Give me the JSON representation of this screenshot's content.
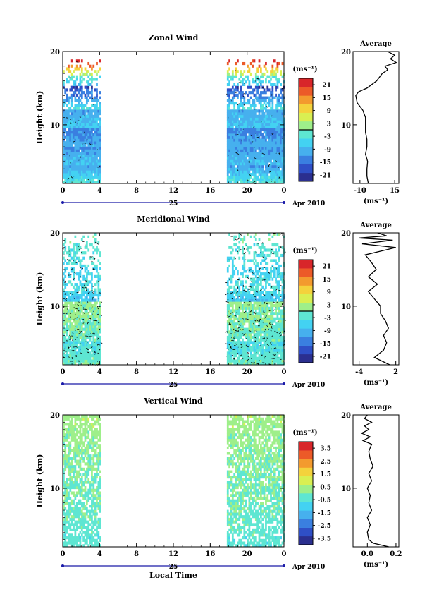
{
  "colors": {
    "colormap": [
      "#2b2f8f",
      "#2f4fc6",
      "#3a7fe0",
      "#46b0ee",
      "#43d2f2",
      "#5ee6d2",
      "#9eef8a",
      "#d9ef52",
      "#f4d23c",
      "#f39a2e",
      "#ec5a28",
      "#d8262a"
    ],
    "axis": "#000000",
    "tick_marks": "#1a1aa8"
  },
  "chart_data": [
    {
      "id": "zonal",
      "type": "heatmap",
      "title": "Zonal Wind",
      "ylabel": "Height (km)",
      "xlabel": "",
      "x_ticks": [
        "0",
        "4",
        "8",
        "12",
        "16",
        "20",
        "0"
      ],
      "x_range_hours": [
        0,
        24
      ],
      "y_ticks": [
        "20",
        "10"
      ],
      "y_range_km": [
        2,
        20
      ],
      "day_label": "25",
      "date_label": "Apr 2010",
      "colorbar": {
        "unit": "(ms⁻¹)",
        "labels": [
          "21",
          "15",
          "9",
          "3",
          "-3",
          "-9",
          "-15",
          "-21"
        ],
        "range": [
          -24,
          24
        ],
        "zero_line": true
      },
      "data_coverage_hours": [
        [
          0,
          4
        ],
        [
          17.8,
          24
        ]
      ],
      "contour_density": 0.05,
      "bands": [
        {
          "z0": 2.0,
          "z1": 4.5,
          "v": [
            -3,
            -12
          ],
          "f": 0.96
        },
        {
          "z0": 4.5,
          "z1": 7.0,
          "v": [
            -8,
            -12
          ],
          "f": 0.97
        },
        {
          "z0": 7.0,
          "z1": 9.5,
          "v": [
            -10,
            -14
          ],
          "f": 0.97
        },
        {
          "z0": 9.5,
          "z1": 12.0,
          "v": [
            -7,
            -11
          ],
          "f": 0.97
        },
        {
          "z0": 12.0,
          "z1": 14.0,
          "v": [
            -3,
            -16
          ],
          "f": 0.6
        },
        {
          "z0": 14.0,
          "z1": 15.0,
          "v": [
            -12,
            -20
          ],
          "f": 0.5
        },
        {
          "z0": 15.0,
          "z1": 16.5,
          "v": [
            -8,
            -2
          ],
          "f": 0.4
        },
        {
          "z0": 16.5,
          "z1": 17.6,
          "v": [
            2,
            12
          ],
          "f": 0.3
        },
        {
          "z0": 17.6,
          "z1": 18.6,
          "v": [
            15,
            22
          ],
          "f": 0.25
        }
      ],
      "profile": {
        "xticks": [
          "-10",
          "15"
        ],
        "xlim": [
          -15,
          18
        ],
        "heights": [
          2,
          3,
          4,
          5,
          6,
          7,
          8,
          9,
          10,
          11,
          12,
          13,
          14,
          14.5,
          15,
          16,
          17,
          17.5,
          18,
          18.5,
          19,
          19.5,
          20
        ],
        "values": [
          -4,
          -5,
          -5,
          -4.5,
          -6,
          -5,
          -5,
          -6,
          -6,
          -6,
          -8,
          -12,
          -13,
          -11,
          -5,
          2,
          6,
          10,
          8,
          16,
          12,
          15,
          10
        ]
      }
    },
    {
      "id": "meridional",
      "type": "heatmap",
      "title": "Meridional Wind",
      "ylabel": "Height (km)",
      "xlabel": "",
      "x_ticks": [
        "0",
        "4",
        "8",
        "12",
        "16",
        "20",
        "0"
      ],
      "x_range_hours": [
        0,
        24
      ],
      "y_ticks": [
        "20",
        "10"
      ],
      "y_range_km": [
        2,
        20
      ],
      "day_label": "25",
      "date_label": "Apr 2010",
      "colorbar": {
        "unit": "(ms⁻¹)",
        "labels": [
          "21",
          "15",
          "9",
          "3",
          "-3",
          "-9",
          "-15",
          "-21"
        ],
        "range": [
          -24,
          24
        ],
        "zero_line": true
      },
      "data_coverage_hours": [
        [
          0,
          4
        ],
        [
          17.8,
          24
        ]
      ],
      "contour_density": 0.22,
      "bands": [
        {
          "z0": 2.0,
          "z1": 5.0,
          "v": [
            -1,
            -4
          ],
          "f": 0.92
        },
        {
          "z0": 5.0,
          "z1": 9.0,
          "v": [
            -2,
            1
          ],
          "f": 0.9
        },
        {
          "z0": 9.0,
          "z1": 10.5,
          "v": [
            0,
            2
          ],
          "f": 0.85
        },
        {
          "z0": 10.5,
          "z1": 12.0,
          "v": [
            -8,
            -4
          ],
          "f": 0.85
        },
        {
          "z0": 12.0,
          "z1": 15.0,
          "v": [
            -3,
            -6
          ],
          "f": 0.45
        },
        {
          "z0": 15.0,
          "z1": 18.5,
          "v": [
            -4,
            -2
          ],
          "f": 0.35
        },
        {
          "z0": 18.5,
          "z1": 20.0,
          "v": [
            -2,
            0
          ],
          "f": 0.15
        }
      ],
      "profile": {
        "xticks": [
          "-4",
          "2"
        ],
        "xlim": [
          -5,
          2.5
        ],
        "heights": [
          2,
          3,
          4,
          5,
          6,
          7,
          8,
          9,
          10,
          11,
          12,
          13,
          14,
          15,
          16,
          17,
          17.5,
          18,
          18.5,
          19,
          19.3,
          19.6,
          20
        ],
        "values": [
          1,
          -1.5,
          0,
          0.5,
          0,
          0.8,
          0.3,
          -0.5,
          -0.5,
          -1.5,
          -2.5,
          -1,
          -2.5,
          -1.2,
          -2,
          -3,
          -0.5,
          2.0,
          -3.5,
          1.5,
          -4.0,
          0.5,
          -1.0
        ]
      }
    },
    {
      "id": "vertical",
      "type": "heatmap",
      "title": "Vertical Wind",
      "ylabel": "Height (km)",
      "xlabel": "Local Time",
      "x_ticks": [
        "0",
        "4",
        "8",
        "12",
        "16",
        "20",
        "0"
      ],
      "x_range_hours": [
        0,
        24
      ],
      "y_ticks": [
        "20",
        "10"
      ],
      "y_range_km": [
        2,
        20
      ],
      "day_label": "25",
      "date_label": "Apr 2010",
      "colorbar": {
        "unit": "(ms⁻¹)",
        "labels": [
          "3.5",
          "2.5",
          "1.5",
          "0.5",
          "-0.5",
          "-1.5",
          "-2.5",
          "-3.5"
        ],
        "range": [
          -4,
          4
        ],
        "zero_line": false
      },
      "data_coverage_hours": [
        [
          0,
          4
        ],
        [
          17.8,
          24
        ]
      ],
      "contour_density": 0,
      "bands": [
        {
          "z0": 2.0,
          "z1": 20.0,
          "v": [
            -0.4,
            0.4
          ],
          "f": 0.72
        }
      ],
      "profile": {
        "xticks": [
          "0.0",
          "0.2"
        ],
        "xlim": [
          -0.1,
          0.22
        ],
        "heights": [
          2,
          2.5,
          3,
          4,
          5,
          6,
          7,
          8,
          9,
          10,
          11,
          12,
          13,
          14,
          15,
          16,
          16.5,
          17,
          17.5,
          18,
          18.5,
          19,
          19.5,
          20
        ],
        "values": [
          0.15,
          0.04,
          0.01,
          0.0,
          0.02,
          0.0,
          0.03,
          0.01,
          0.02,
          0.0,
          0.03,
          0.01,
          0.04,
          0.02,
          0.01,
          0.03,
          -0.03,
          0.02,
          -0.04,
          0.01,
          -0.02,
          0.03,
          -0.02,
          0.0
        ]
      }
    }
  ]
}
